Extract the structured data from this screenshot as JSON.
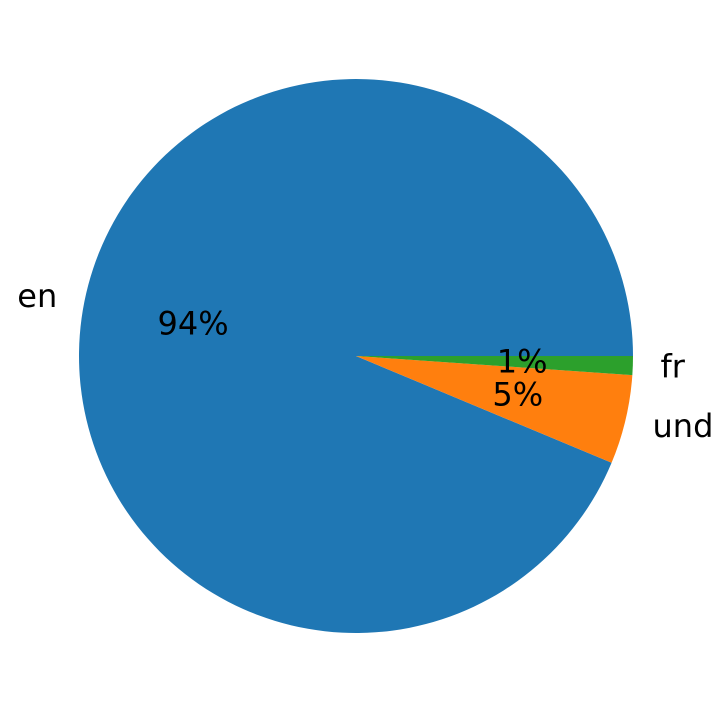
{
  "chart_data": {
    "type": "pie",
    "title": "",
    "labels": [
      "en",
      "und",
      "fr"
    ],
    "values": [
      93.7,
      5.2,
      1.1
    ],
    "pct_labels": [
      "94%",
      "5%",
      "1%"
    ],
    "colors": [
      "#1f77b4",
      "#ff7f0e",
      "#2ca02c"
    ],
    "start_angle_deg": 0,
    "direction": "counterclockwise"
  }
}
